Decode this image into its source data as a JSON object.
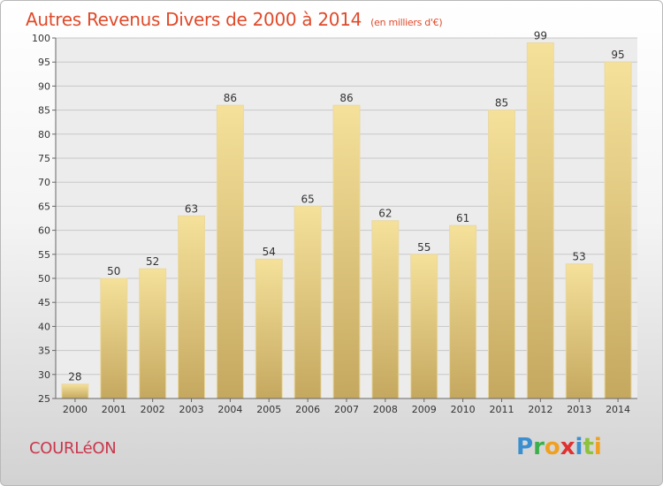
{
  "chart_data": {
    "type": "bar",
    "title": "Autres Revenus Divers de 2000 à 2014",
    "subtitle": "(en milliers d'€)",
    "categories": [
      "2000",
      "2001",
      "2002",
      "2003",
      "2004",
      "2005",
      "2006",
      "2007",
      "2008",
      "2009",
      "2010",
      "2011",
      "2012",
      "2013",
      "2014"
    ],
    "values": [
      28,
      50,
      52,
      63,
      86,
      54,
      65,
      86,
      62,
      55,
      61,
      85,
      99,
      53,
      95
    ],
    "ylim": [
      25,
      100
    ],
    "yticks": [
      25,
      30,
      35,
      40,
      45,
      50,
      55,
      60,
      65,
      70,
      75,
      80,
      85,
      90,
      95,
      100
    ],
    "grid": true,
    "bar_color_top": "#f5e19a",
    "bar_color_bottom": "#c5a860"
  },
  "footer": {
    "commune": "COURLéON",
    "brand": "Proxiti"
  }
}
